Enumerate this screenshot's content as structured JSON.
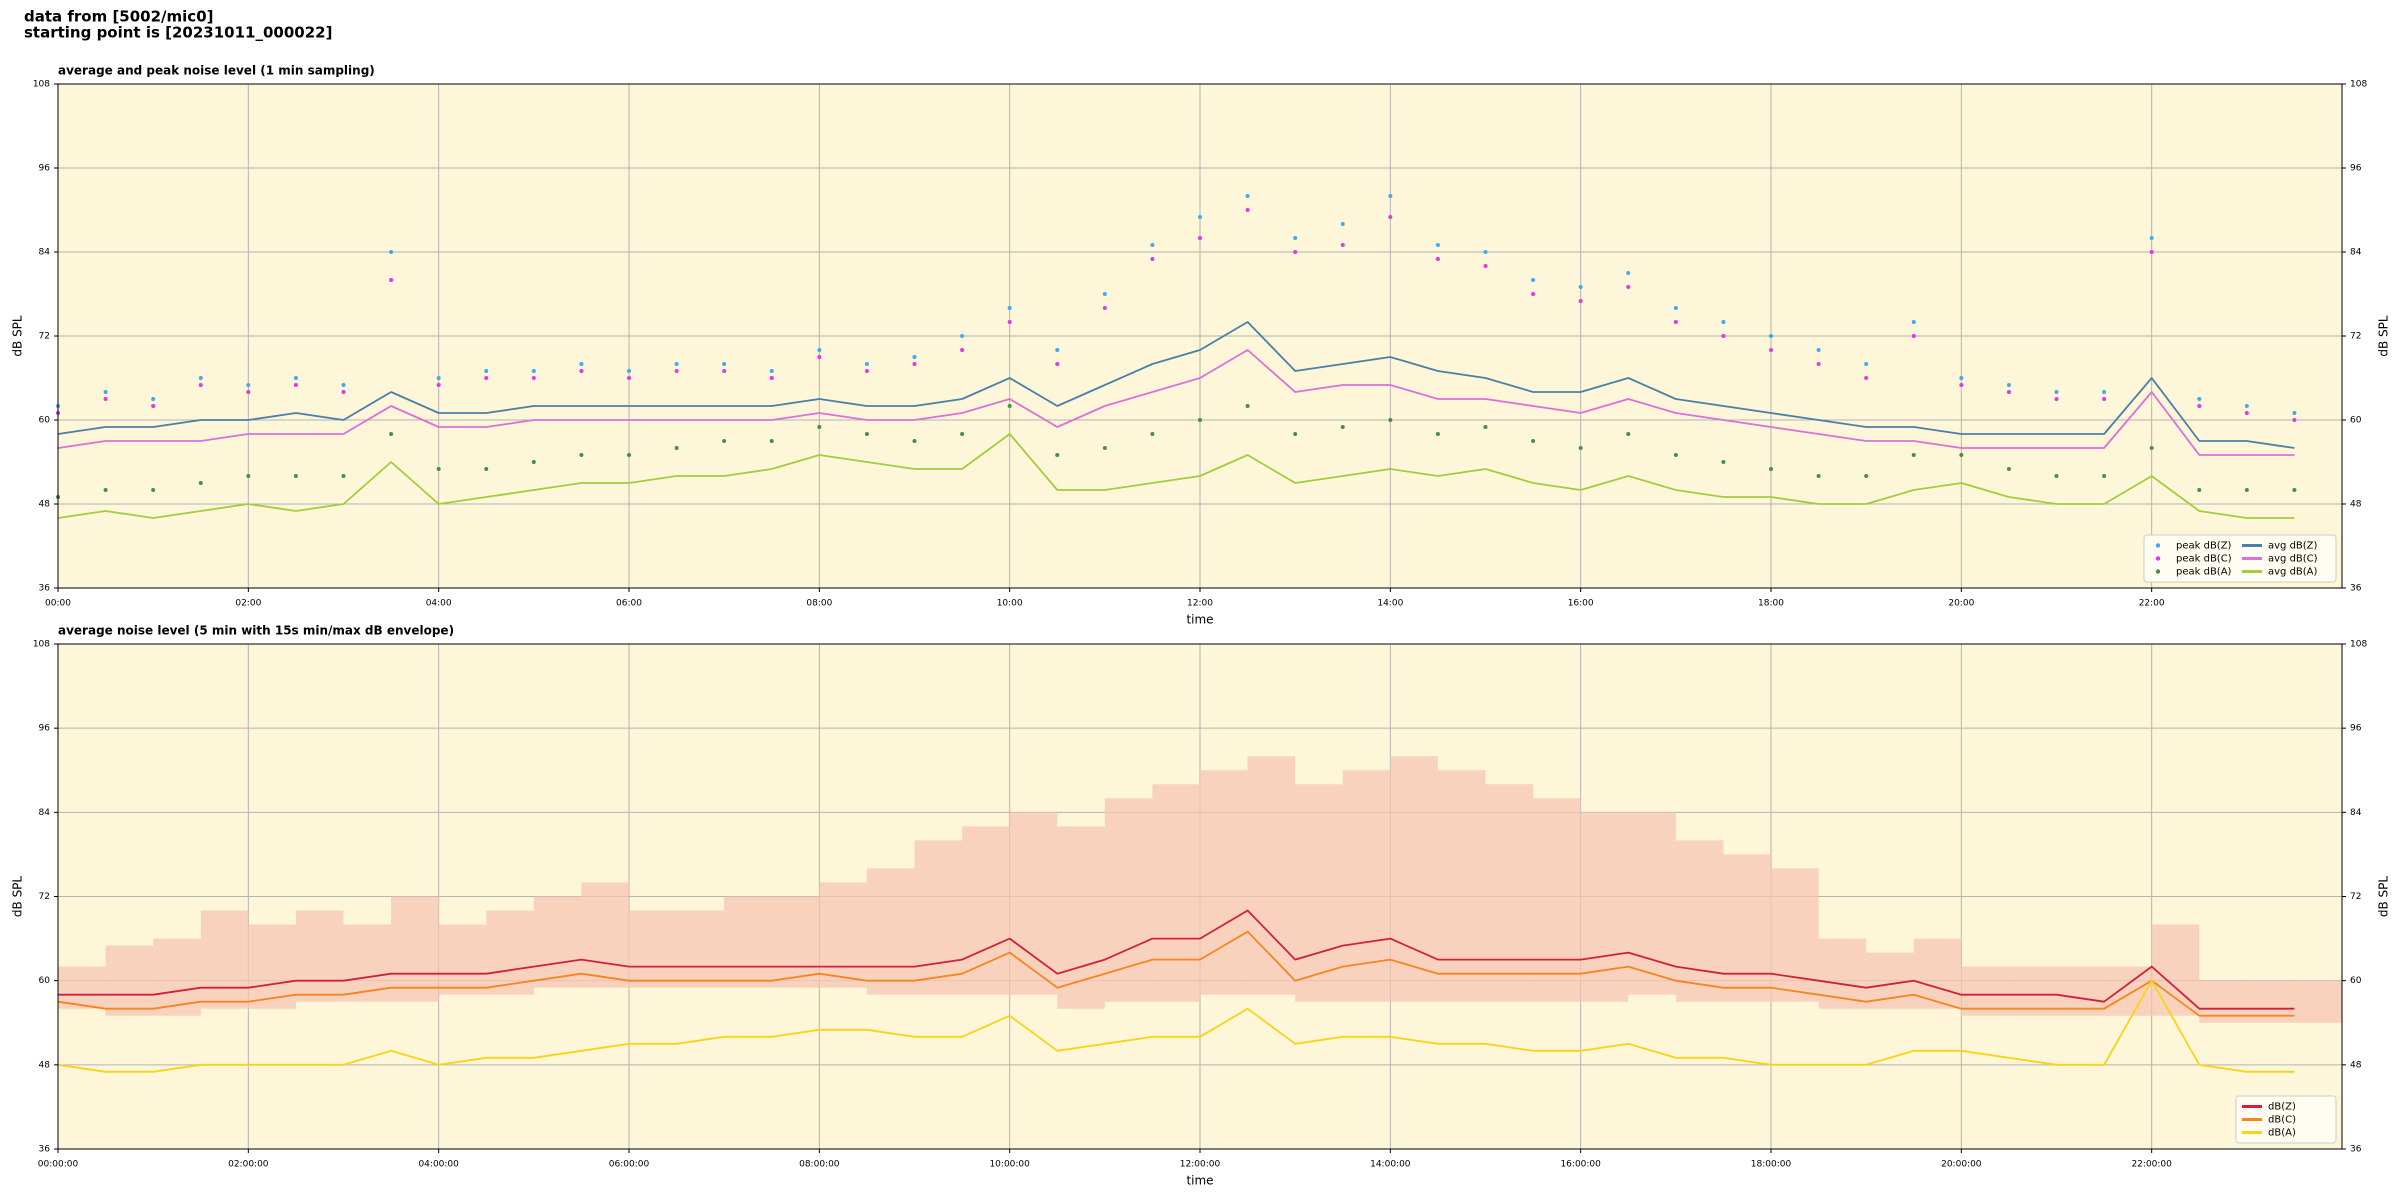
{
  "header": {
    "line1": "data from [5002/mic0]",
    "line2": "starting point is [20231011_000022]"
  },
  "chart_data": [
    {
      "type": "line",
      "title": "average and peak noise level (1 min sampling)",
      "xlabel": "time",
      "ylabel": "dB SPL",
      "y2label": "dB SPL",
      "xlim": [
        0,
        24
      ],
      "xticks": [
        {
          "value": 0,
          "label": "00:00"
        },
        {
          "value": 2,
          "label": "02:00"
        },
        {
          "value": 4,
          "label": "04:00"
        },
        {
          "value": 6,
          "label": "06:00"
        },
        {
          "value": 8,
          "label": "08:00"
        },
        {
          "value": 10,
          "label": "10:00"
        },
        {
          "value": 12,
          "label": "12:00"
        },
        {
          "value": 14,
          "label": "14:00"
        },
        {
          "value": 16,
          "label": "16:00"
        },
        {
          "value": 18,
          "label": "18:00"
        },
        {
          "value": 20,
          "label": "20:00"
        },
        {
          "value": 22,
          "label": "22:00"
        }
      ],
      "ylim": [
        36,
        108
      ],
      "yticks": [
        36,
        48,
        60,
        72,
        84,
        96,
        108
      ],
      "y2lim": [
        36,
        108
      ],
      "y2ticks": [
        36,
        48,
        60,
        72,
        84,
        96,
        108
      ],
      "grid": true,
      "legend": "lower right",
      "legend_columns": 2,
      "background": "#fdf6d8",
      "x": [
        0,
        0.5,
        1,
        1.5,
        2,
        2.5,
        3,
        3.5,
        4,
        4.5,
        5,
        5.5,
        6,
        6.5,
        7,
        7.5,
        8,
        8.5,
        9,
        9.5,
        10,
        10.5,
        11,
        11.5,
        12,
        12.5,
        13,
        13.5,
        14,
        14.5,
        15,
        15.5,
        16,
        16.5,
        17,
        17.5,
        18,
        18.5,
        19,
        19.5,
        20,
        20.5,
        21,
        21.5,
        22,
        22.5,
        23,
        23.5
      ],
      "series": [
        {
          "name": "peak dB(Z)",
          "style": "points",
          "color": "#3fa9f5",
          "values": [
            62,
            64,
            63,
            66,
            65,
            66,
            65,
            84,
            66,
            67,
            67,
            68,
            67,
            68,
            68,
            67,
            70,
            68,
            69,
            72,
            76,
            70,
            78,
            85,
            89,
            92,
            86,
            88,
            92,
            85,
            84,
            80,
            79,
            81,
            76,
            74,
            72,
            70,
            68,
            74,
            66,
            65,
            64,
            64,
            86,
            63,
            62,
            61
          ]
        },
        {
          "name": "peak dB(C)",
          "style": "points",
          "color": "#e535e5",
          "values": [
            61,
            63,
            62,
            65,
            64,
            65,
            64,
            80,
            65,
            66,
            66,
            67,
            66,
            67,
            67,
            66,
            69,
            67,
            68,
            70,
            74,
            68,
            76,
            83,
            86,
            90,
            84,
            85,
            89,
            83,
            82,
            78,
            77,
            79,
            74,
            72,
            70,
            68,
            66,
            72,
            65,
            64,
            63,
            63,
            84,
            62,
            61,
            60
          ]
        },
        {
          "name": "peak dB(A)",
          "style": "points",
          "color": "#4c8c4a",
          "values": [
            49,
            50,
            50,
            51,
            52,
            52,
            52,
            58,
            53,
            53,
            54,
            55,
            55,
            56,
            57,
            57,
            59,
            58,
            57,
            58,
            62,
            55,
            56,
            58,
            60,
            62,
            58,
            59,
            60,
            58,
            59,
            57,
            56,
            58,
            55,
            54,
            53,
            52,
            52,
            55,
            55,
            53,
            52,
            52,
            56,
            50,
            50,
            50
          ]
        },
        {
          "name": "avg dB(Z)",
          "style": "line",
          "color": "#4a7fa8",
          "values": [
            58,
            59,
            59,
            60,
            60,
            61,
            60,
            64,
            61,
            61,
            62,
            62,
            62,
            62,
            62,
            62,
            63,
            62,
            62,
            63,
            66,
            62,
            65,
            68,
            70,
            74,
            67,
            68,
            69,
            67,
            66,
            64,
            64,
            66,
            63,
            62,
            61,
            60,
            59,
            59,
            58,
            58,
            58,
            58,
            66,
            57,
            57,
            56
          ]
        },
        {
          "name": "avg dB(C)",
          "style": "line",
          "color": "#dd6fd8",
          "values": [
            56,
            57,
            57,
            57,
            58,
            58,
            58,
            62,
            59,
            59,
            60,
            60,
            60,
            60,
            60,
            60,
            61,
            60,
            60,
            61,
            63,
            59,
            62,
            64,
            66,
            70,
            64,
            65,
            65,
            63,
            63,
            62,
            61,
            63,
            61,
            60,
            59,
            58,
            57,
            57,
            56,
            56,
            56,
            56,
            64,
            55,
            55,
            55
          ]
        },
        {
          "name": "avg dB(A)",
          "style": "line",
          "color": "#a3cd3c",
          "values": [
            46,
            47,
            46,
            47,
            48,
            47,
            48,
            54,
            48,
            49,
            50,
            51,
            51,
            52,
            52,
            53,
            55,
            54,
            53,
            53,
            58,
            50,
            50,
            51,
            52,
            55,
            51,
            52,
            53,
            52,
            53,
            51,
            50,
            52,
            50,
            49,
            49,
            48,
            48,
            50,
            51,
            49,
            48,
            48,
            52,
            47,
            46,
            46
          ]
        }
      ]
    },
    {
      "type": "line",
      "title": "average noise level (5 min with 15s min/max dB envelope)",
      "xlabel": "time",
      "ylabel": "dB SPL",
      "y2label": "dB SPL",
      "xlim": [
        0,
        24
      ],
      "xticks": [
        {
          "value": 0,
          "label": "00:00:00"
        },
        {
          "value": 2,
          "label": "02:00:00"
        },
        {
          "value": 4,
          "label": "04:00:00"
        },
        {
          "value": 6,
          "label": "06:00:00"
        },
        {
          "value": 8,
          "label": "08:00:00"
        },
        {
          "value": 10,
          "label": "10:00:00"
        },
        {
          "value": 12,
          "label": "12:00:00"
        },
        {
          "value": 14,
          "label": "14:00:00"
        },
        {
          "value": 16,
          "label": "16:00:00"
        },
        {
          "value": 18,
          "label": "18:00:00"
        },
        {
          "value": 20,
          "label": "20:00:00"
        },
        {
          "value": 22,
          "label": "22:00:00"
        }
      ],
      "ylim": [
        36,
        108
      ],
      "yticks": [
        36,
        48,
        60,
        72,
        84,
        96,
        108
      ],
      "y2lim": [
        36,
        108
      ],
      "y2ticks": [
        36,
        48,
        60,
        72,
        84,
        96,
        108
      ],
      "grid": true,
      "legend": "lower right",
      "legend_columns": 1,
      "background": "#fdf6d8",
      "x": [
        0,
        0.5,
        1,
        1.5,
        2,
        2.5,
        3,
        3.5,
        4,
        4.5,
        5,
        5.5,
        6,
        6.5,
        7,
        7.5,
        8,
        8.5,
        9,
        9.5,
        10,
        10.5,
        11,
        11.5,
        12,
        12.5,
        13,
        13.5,
        14,
        14.5,
        15,
        15.5,
        16,
        16.5,
        17,
        17.5,
        18,
        18.5,
        19,
        19.5,
        20,
        20.5,
        21,
        21.5,
        22,
        22.5,
        23,
        23.5
      ],
      "envelope": {
        "color": "#f5c6b4",
        "min": [
          56,
          55,
          55,
          56,
          56,
          57,
          57,
          57,
          58,
          58,
          59,
          59,
          59,
          59,
          59,
          59,
          59,
          58,
          58,
          58,
          58,
          56,
          57,
          57,
          58,
          58,
          57,
          57,
          57,
          57,
          57,
          57,
          57,
          58,
          57,
          57,
          57,
          56,
          56,
          56,
          55,
          55,
          55,
          55,
          55,
          54,
          54,
          54
        ],
        "max": [
          62,
          65,
          66,
          70,
          68,
          70,
          68,
          72,
          68,
          70,
          72,
          74,
          70,
          70,
          72,
          72,
          74,
          76,
          80,
          82,
          84,
          82,
          86,
          88,
          90,
          92,
          88,
          90,
          92,
          90,
          88,
          86,
          84,
          84,
          80,
          78,
          76,
          66,
          64,
          66,
          62,
          62,
          62,
          62,
          68,
          60,
          60,
          60
        ]
      },
      "series": [
        {
          "name": "dB(Z)",
          "style": "line",
          "color": "#d0203e",
          "values": [
            58,
            58,
            58,
            59,
            59,
            60,
            60,
            61,
            61,
            61,
            62,
            63,
            62,
            62,
            62,
            62,
            62,
            62,
            62,
            63,
            66,
            61,
            63,
            66,
            66,
            70,
            63,
            65,
            66,
            63,
            63,
            63,
            63,
            64,
            62,
            61,
            61,
            60,
            59,
            60,
            58,
            58,
            58,
            57,
            62,
            56,
            56,
            56
          ]
        },
        {
          "name": "dB(C)",
          "style": "line",
          "color": "#f5861f",
          "values": [
            57,
            56,
            56,
            57,
            57,
            58,
            58,
            59,
            59,
            59,
            60,
            61,
            60,
            60,
            60,
            60,
            61,
            60,
            60,
            61,
            64,
            59,
            61,
            63,
            63,
            67,
            60,
            62,
            63,
            61,
            61,
            61,
            61,
            62,
            60,
            59,
            59,
            58,
            57,
            58,
            56,
            56,
            56,
            56,
            60,
            55,
            55,
            55
          ]
        },
        {
          "name": "dB(A)",
          "style": "line",
          "color": "#f7d417",
          "values": [
            48,
            47,
            47,
            48,
            48,
            48,
            48,
            50,
            48,
            49,
            49,
            50,
            51,
            51,
            52,
            52,
            53,
            53,
            52,
            52,
            55,
            50,
            51,
            52,
            52,
            56,
            51,
            52,
            52,
            51,
            51,
            50,
            50,
            51,
            49,
            49,
            48,
            48,
            48,
            50,
            50,
            49,
            48,
            48,
            60,
            48,
            47,
            47
          ]
        }
      ]
    }
  ]
}
